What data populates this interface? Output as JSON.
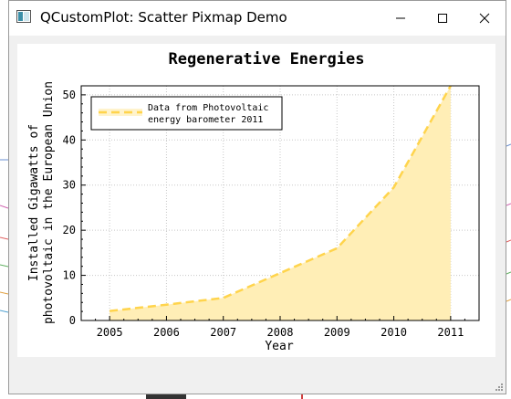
{
  "window": {
    "title": "QCustomPlot: Scatter Pixmap Demo",
    "controls": [
      "minimize",
      "maximize",
      "close"
    ]
  },
  "colors": {
    "series_line": "#ffd44c",
    "series_fill": "#ffeeb6",
    "grid": "#c8c8c8",
    "window_bg": "#f0f0f0"
  },
  "chart_data": {
    "type": "area",
    "title": "Regenerative Energies",
    "xlabel": "Year",
    "ylabel_lines": [
      "Installed Gigawatts of",
      "photovoltaic in the European Union"
    ],
    "x": [
      2005,
      2006,
      2007,
      2008,
      2009,
      2010,
      2011
    ],
    "series": [
      {
        "name_lines": [
          "Data from Photovoltaic",
          "energy barometer 2011"
        ],
        "values": [
          2.1,
          3.5,
          5.0,
          10.5,
          16.0,
          29.5,
          52.0
        ]
      }
    ],
    "xlim": [
      2004.5,
      2011.5
    ],
    "ylim": [
      0,
      52
    ],
    "xticks": [
      "2005",
      "2006",
      "2007",
      "2008",
      "2009",
      "2010",
      "2011"
    ],
    "yticks": [
      "0",
      "10",
      "20",
      "30",
      "40",
      "50"
    ],
    "grid": true,
    "legend_position": "top-left",
    "line_style": "dashed"
  }
}
